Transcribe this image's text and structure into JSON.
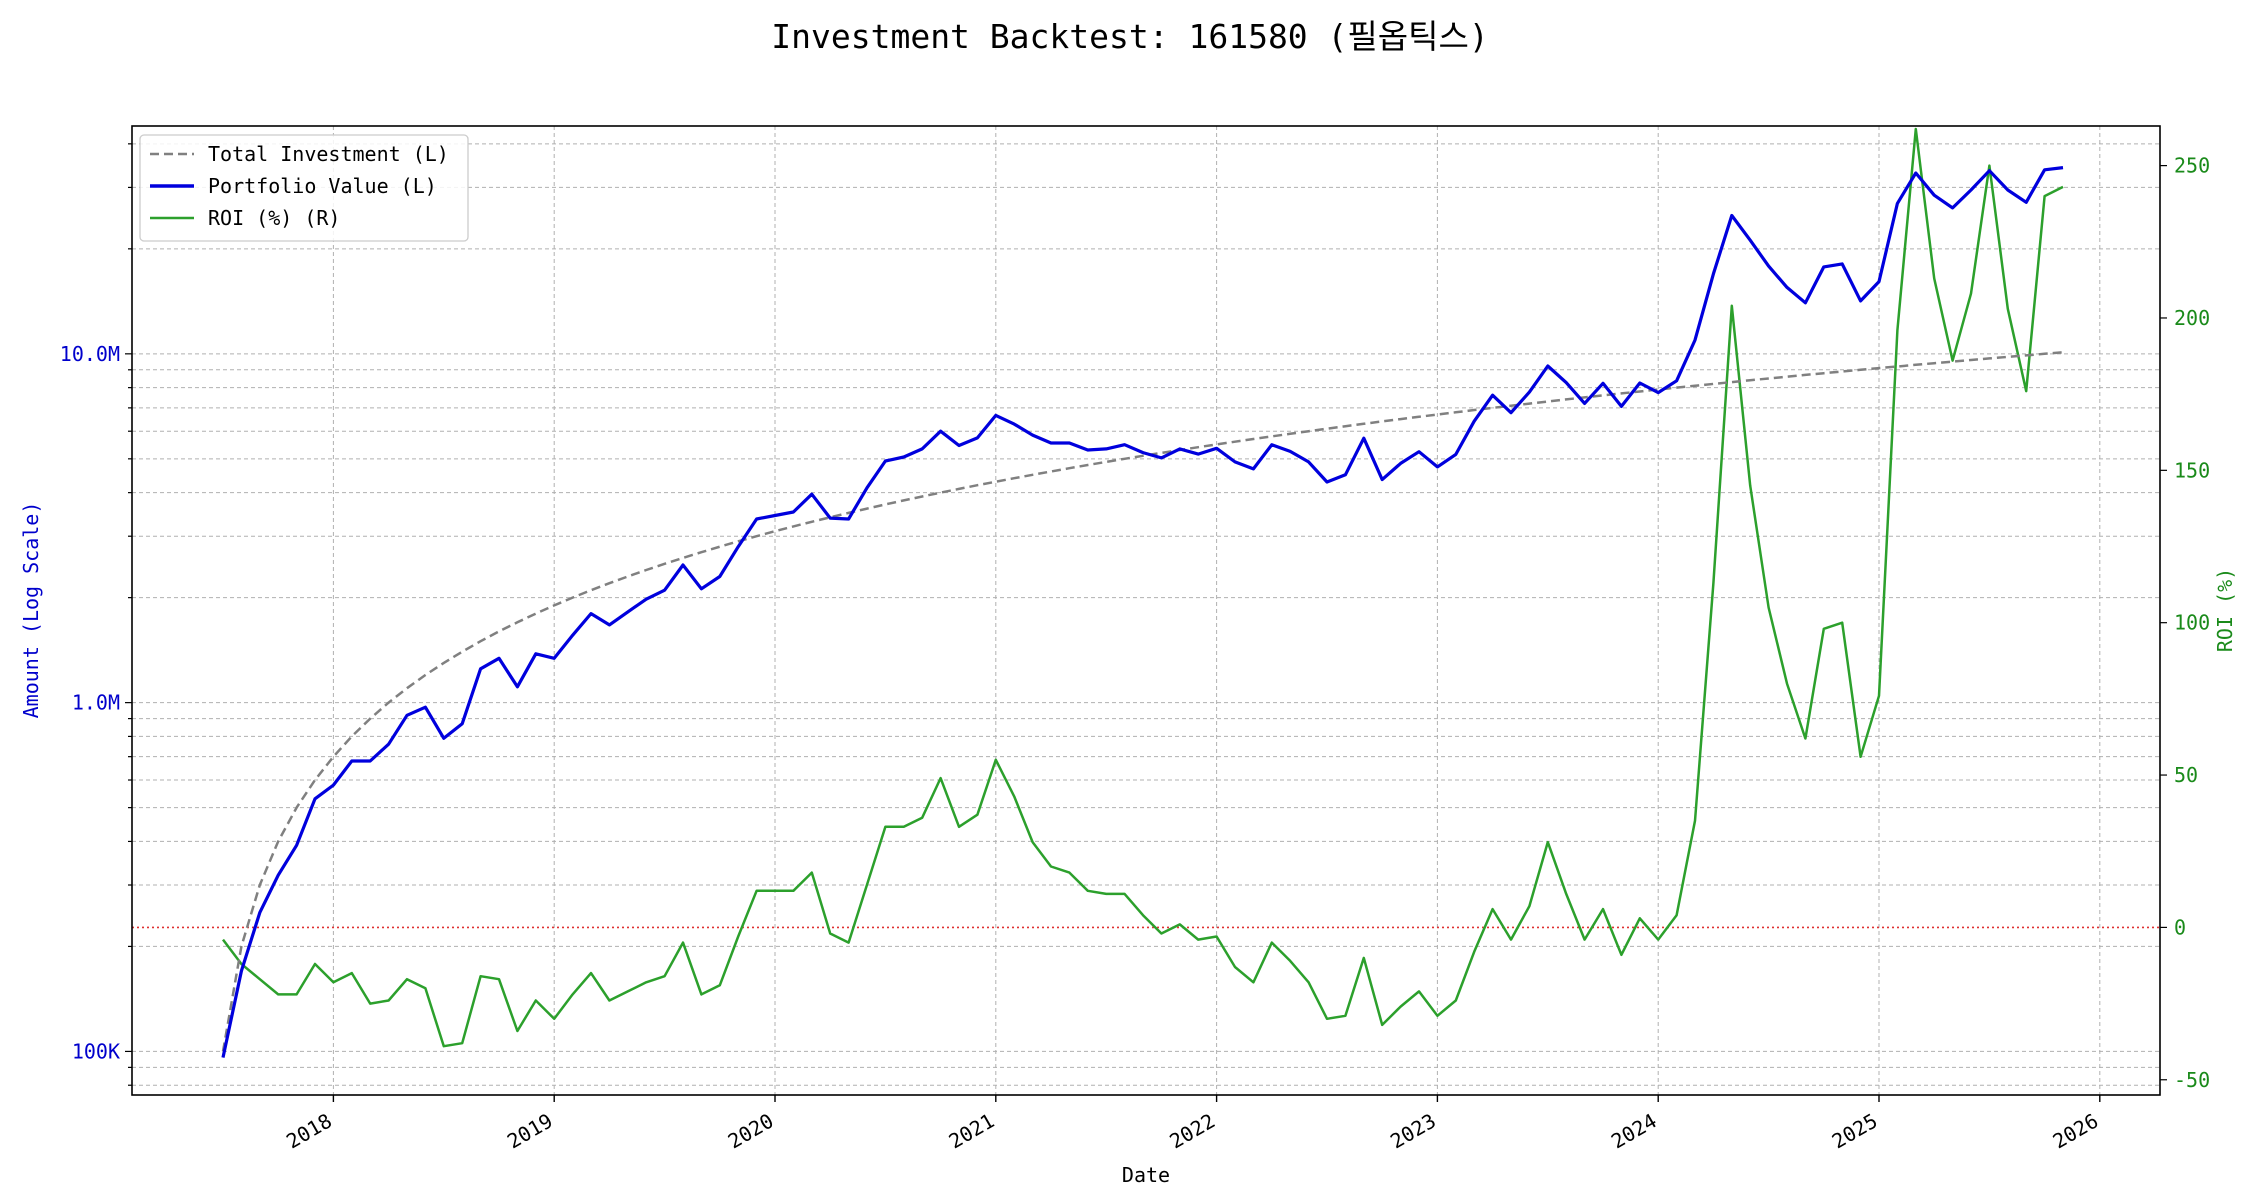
{
  "chart_data": {
    "type": "line",
    "title": "Investment Backtest: 161580 (필옵틱스)",
    "xlabel": "Date",
    "ylabel_left": "Amount (Log Scale)",
    "ylabel_right": "ROI (%)",
    "x_tick_labels": [
      "2018",
      "2019",
      "2020",
      "2021",
      "2022",
      "2023",
      "2024",
      "2025",
      "2026"
    ],
    "y_left_scale": "log",
    "y_left_lim": [
      75000,
      45000000
    ],
    "y_left_ticks": [
      {
        "value": 100000,
        "label": "100K"
      },
      {
        "value": 1000000,
        "label": "1.0M"
      },
      {
        "value": 10000000,
        "label": "10.0M"
      }
    ],
    "y_right_lim": [
      -55,
      263
    ],
    "y_right_ticks": [
      -50,
      0,
      50,
      100,
      150,
      200,
      250
    ],
    "grid": true,
    "legend_position": "top-left",
    "zero_line": {
      "axis": "right",
      "value": 0,
      "color": "#e03030"
    },
    "colors": {
      "left_axis": "#0000cc",
      "right_axis": "#1a8a1a",
      "total_investment": "#808080",
      "portfolio_value": "#0000dd",
      "roi": "#2ca02c"
    },
    "x": [
      "2017-07",
      "2017-08",
      "2017-09",
      "2017-10",
      "2017-11",
      "2017-12",
      "2018-01",
      "2018-02",
      "2018-03",
      "2018-04",
      "2018-05",
      "2018-06",
      "2018-07",
      "2018-08",
      "2018-09",
      "2018-10",
      "2018-11",
      "2018-12",
      "2019-01",
      "2019-02",
      "2019-03",
      "2019-04",
      "2019-05",
      "2019-06",
      "2019-07",
      "2019-08",
      "2019-09",
      "2019-10",
      "2019-11",
      "2019-12",
      "2020-01",
      "2020-02",
      "2020-03",
      "2020-04",
      "2020-05",
      "2020-06",
      "2020-07",
      "2020-08",
      "2020-09",
      "2020-10",
      "2020-11",
      "2020-12",
      "2021-01",
      "2021-02",
      "2021-03",
      "2021-04",
      "2021-05",
      "2021-06",
      "2021-07",
      "2021-08",
      "2021-09",
      "2021-10",
      "2021-11",
      "2021-12",
      "2022-01",
      "2022-02",
      "2022-03",
      "2022-04",
      "2022-05",
      "2022-06",
      "2022-07",
      "2022-08",
      "2022-09",
      "2022-10",
      "2022-11",
      "2022-12",
      "2023-01",
      "2023-02",
      "2023-03",
      "2023-04",
      "2023-05",
      "2023-06",
      "2023-07",
      "2023-08",
      "2023-09",
      "2023-10",
      "2023-11",
      "2023-12",
      "2024-01",
      "2024-02",
      "2024-03",
      "2024-04",
      "2024-05",
      "2024-06",
      "2024-07",
      "2024-08",
      "2024-09",
      "2024-10",
      "2024-11",
      "2024-12",
      "2025-01",
      "2025-02",
      "2025-03",
      "2025-04",
      "2025-05",
      "2025-06",
      "2025-07",
      "2025-08",
      "2025-09",
      "2025-10",
      "2025-11"
    ],
    "series": [
      {
        "name": "Total Investment (L)",
        "axis": "left",
        "style": "dashed",
        "values": [
          100000,
          200000,
          300000,
          400000,
          500000,
          600000,
          700000,
          800000,
          900000,
          1000000,
          1100000,
          1200000,
          1300000,
          1400000,
          1500000,
          1600000,
          1700000,
          1800000,
          1900000,
          2000000,
          2100000,
          2200000,
          2300000,
          2400000,
          2500000,
          2600000,
          2700000,
          2800000,
          2900000,
          3000000,
          3100000,
          3200000,
          3300000,
          3400000,
          3500000,
          3600000,
          3700000,
          3800000,
          3900000,
          4000000,
          4100000,
          4200000,
          4300000,
          4400000,
          4500000,
          4600000,
          4700000,
          4800000,
          4900000,
          5000000,
          5100000,
          5200000,
          5300000,
          5400000,
          5500000,
          5600000,
          5700000,
          5800000,
          5900000,
          6000000,
          6100000,
          6200000,
          6300000,
          6400000,
          6500000,
          6600000,
          6700000,
          6800000,
          6900000,
          7000000,
          7100000,
          7200000,
          7300000,
          7400000,
          7500000,
          7600000,
          7700000,
          7800000,
          7900000,
          8000000,
          8100000,
          8200000,
          8300000,
          8400000,
          8500000,
          8600000,
          8700000,
          8800000,
          8900000,
          9000000,
          9100000,
          9200000,
          9300000,
          9400000,
          9500000,
          9600000,
          9700000,
          9800000,
          9900000,
          10000000,
          10100000
        ]
      },
      {
        "name": "Portfolio Value (L)",
        "axis": "left",
        "style": "solid",
        "values": [
          96000,
          170000,
          250000,
          320000,
          390000,
          530000,
          580000,
          680000,
          680000,
          760000,
          920000,
          970000,
          790000,
          870000,
          1250000,
          1340000,
          1110000,
          1380000,
          1340000,
          1560000,
          1800000,
          1670000,
          1820000,
          1980000,
          2100000,
          2480000,
          2120000,
          2300000,
          2800000,
          3360000,
          3440000,
          3520000,
          3960000,
          3380000,
          3360000,
          4130000,
          4930000,
          5060000,
          5340000,
          6000000,
          5460000,
          5740000,
          6660000,
          6290000,
          5850000,
          5550000,
          5550000,
          5300000,
          5340000,
          5490000,
          5210000,
          5030000,
          5340000,
          5160000,
          5360000,
          4900000,
          4680000,
          5490000,
          5250000,
          4900000,
          4290000,
          4500000,
          5730000,
          4360000,
          4850000,
          5240000,
          4740000,
          5150000,
          6410000,
          7610000,
          6780000,
          7770000,
          9230000,
          8270000,
          7210000,
          8230000,
          7070000,
          8250000,
          7740000,
          8370000,
          10950000,
          16950000,
          24920000,
          21180000,
          17850000,
          15500000,
          14010000,
          17750000,
          18110000,
          14180000,
          16110000,
          27000000,
          33000000,
          28500000,
          26200000,
          29500000,
          33500000,
          29500000,
          27200000,
          33700000,
          34200000
        ]
      },
      {
        "name": "ROI (%) (R)",
        "axis": "right",
        "style": "solid",
        "values": [
          -4,
          -12,
          -17,
          -22,
          -22,
          -12,
          -18,
          -15,
          -25,
          -24,
          -17,
          -20,
          -39,
          -38,
          -16,
          -17,
          -34,
          -24,
          -30,
          -22,
          -15,
          -24,
          -21,
          -18,
          -16,
          -5,
          -22,
          -19,
          -3,
          12,
          12,
          12,
          18,
          -2,
          -5,
          14,
          33,
          33,
          36,
          49,
          33,
          37,
          55,
          43,
          28,
          20,
          18,
          12,
          11,
          11,
          4,
          -2,
          1,
          -4,
          -3,
          -13,
          -18,
          -5,
          -11,
          -18,
          -30,
          -29,
          -10,
          -32,
          -26,
          -21,
          -29,
          -24,
          -8,
          6,
          -4,
          7,
          28,
          11,
          -4,
          6,
          -9,
          3,
          -4,
          4,
          35,
          113,
          204,
          145,
          105,
          80,
          62,
          98,
          100,
          56,
          76,
          196,
          262,
          213,
          186,
          208,
          250,
          203,
          176,
          240,
          243
        ]
      }
    ]
  }
}
